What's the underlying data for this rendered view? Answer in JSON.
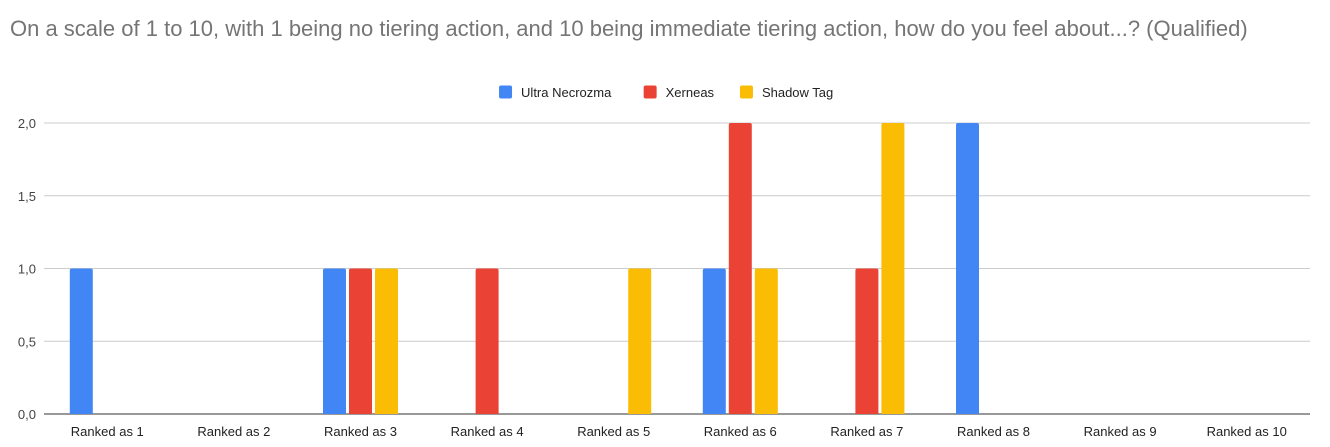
{
  "chart_data": {
    "type": "bar",
    "title": "On a scale of 1 to 10, with 1 being no tiering action, and 10 being immediate tiering action, how do you feel about...? (Qualified)",
    "categories": [
      "Ranked as 1",
      "Ranked as 2",
      "Ranked as 3",
      "Ranked as 4",
      "Ranked as 5",
      "Ranked as 6",
      "Ranked as 7",
      "Ranked as 8",
      "Ranked as 9",
      "Ranked as 10"
    ],
    "series": [
      {
        "name": "Ultra Necrozma",
        "color": "#4285f4",
        "values": [
          1,
          0,
          1,
          0,
          0,
          1,
          0,
          2,
          0,
          0
        ]
      },
      {
        "name": "Xerneas",
        "color": "#ea4335",
        "values": [
          0,
          0,
          1,
          1,
          0,
          2,
          1,
          0,
          0,
          0
        ]
      },
      {
        "name": "Shadow Tag",
        "color": "#fbbc04",
        "values": [
          0,
          0,
          1,
          0,
          1,
          1,
          2,
          0,
          0,
          0
        ]
      }
    ],
    "ylim": [
      0,
      2
    ],
    "yticks": [
      0,
      0.5,
      1,
      1.5,
      2
    ],
    "ytick_labels": [
      "0,0",
      "0,5",
      "1,0",
      "1,5",
      "2,0"
    ],
    "xlabel": "",
    "ylabel": "",
    "grid": true,
    "legend_position": "top"
  }
}
